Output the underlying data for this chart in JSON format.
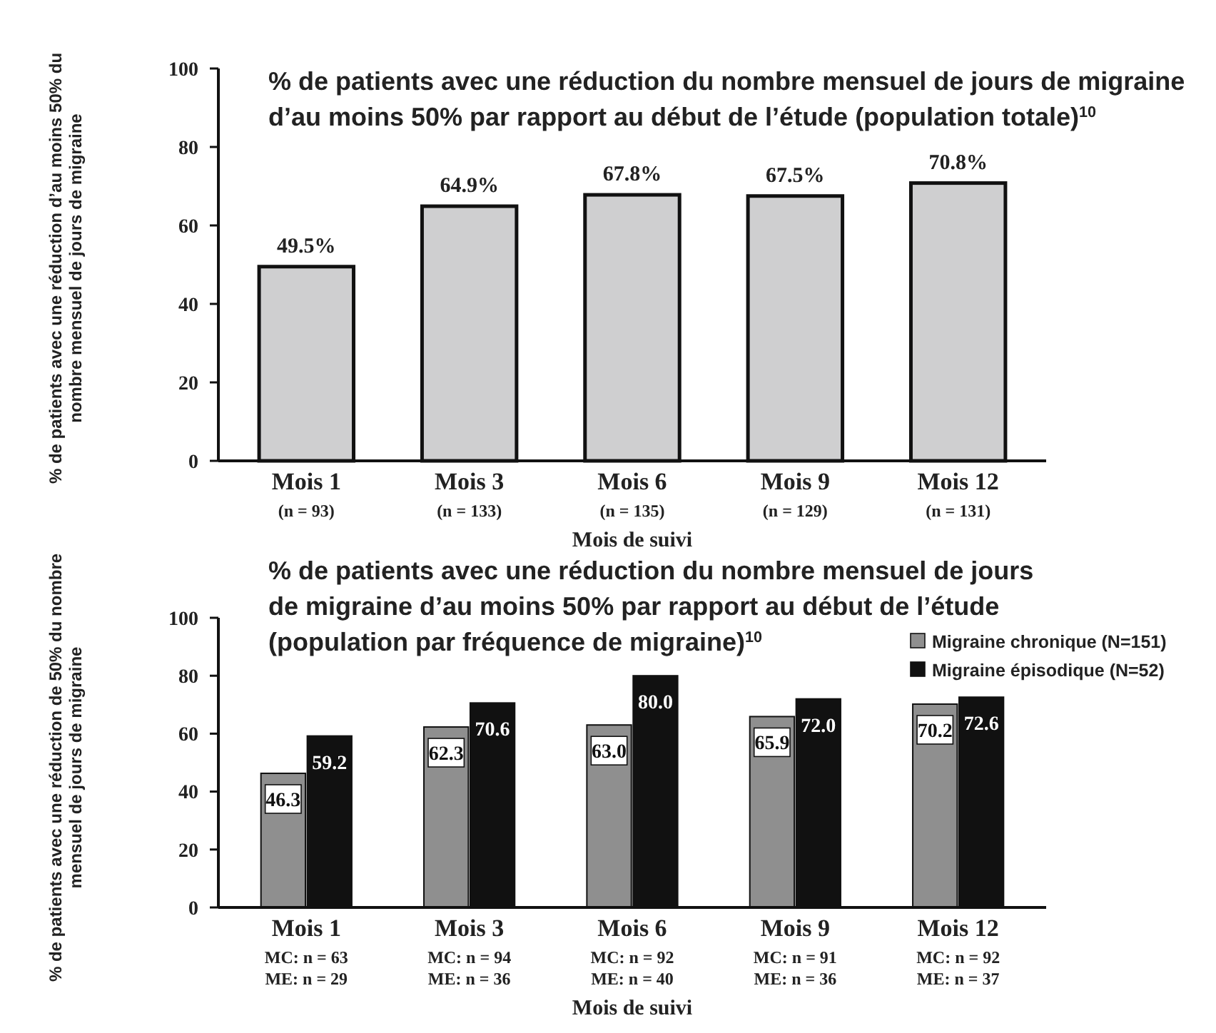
{
  "chart_data": [
    {
      "type": "bar",
      "title": "% de patients avec une réduction du nombre mensuel de jours de migraine d’au moins 50% par rapport au début de l’étude (population totale)$^{10}$",
      "xlabel": "Mois de suivi",
      "ylabel": "% de patients avec une réduction d’au moins 50% du nombre mensuel de jours de migraine",
      "categories": [
        "Mois 1\n(n = 93)",
        "Mois 3\n(n = 133)",
        "Mois 6\n(n = 135)",
        "Mois 9\n(n = 129)",
        "Mois 12\n(n = 131)"
      ],
      "series": [
        {
          "color": "#cfcfd0",
          "values": [
            49.5,
            64.9,
            67.8,
            67.5,
            70.8
          ],
          "value_labels": [
            "49.5%",
            "64.9%",
            "67.8%",
            "67.5%",
            "70.8%"
          ]
        }
      ],
      "ylim": [
        0,
        100
      ],
      "yticks": [
        0,
        20,
        40,
        60,
        80,
        100
      ],
      "grid": false,
      "legend": false
    },
    {
      "type": "bar",
      "title": "% de patients avec une réduction du nombre mensuel de jours de migraine d’au moins 50% par rapport au début de l’étude (population par fréquence de migraine)$^{10}$",
      "xlabel": "Mois de suivi",
      "ylabel": "% de patients avec une réduction de 50% du nombre mensuel de jours de migraine",
      "categories": [
        "Mois 1\nMC: n = 63\nME: n = 29",
        "Mois 3\nMC: n = 94\nME: n = 36",
        "Mois 6\nMC: n = 92\nME: n = 40",
        "Mois 9\nMC: n = 91\nME: n = 36",
        "Mois 12\nMC: n = 92\nME: n = 37"
      ],
      "series": [
        {
          "name": "Migraine chronique (N=151)",
          "color": "#8f8f8f",
          "values": [
            46.3,
            62.3,
            63.0,
            65.9,
            70.2
          ],
          "value_labels": [
            "46.3",
            "62.3",
            "63.0",
            "65.9",
            "70.2"
          ]
        },
        {
          "name": "Migraine épisodique (N=52)",
          "color": "#111111",
          "values": [
            59.2,
            70.6,
            80.0,
            72.0,
            72.6
          ],
          "value_labels": [
            "59.2",
            "70.6",
            "80.0",
            "72.0",
            "72.6"
          ]
        }
      ],
      "ylim": [
        0,
        100
      ],
      "yticks": [
        0,
        20,
        40,
        60,
        80,
        100
      ],
      "grid": false,
      "legend": "top right"
    }
  ]
}
